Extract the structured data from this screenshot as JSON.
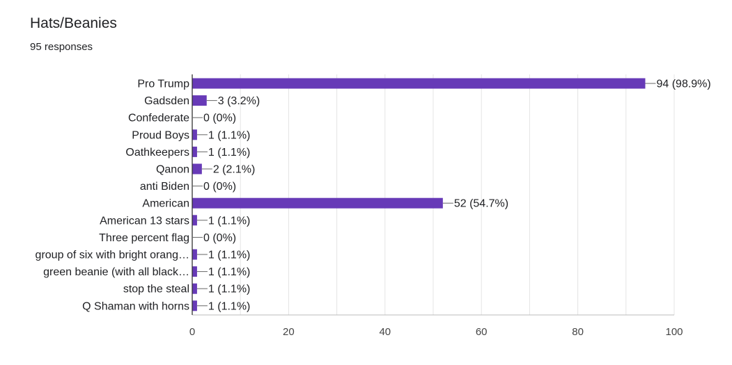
{
  "header": {
    "title": "Hats/Beanies",
    "subtitle": "95 responses"
  },
  "colors": {
    "bar": "#673ab7",
    "grid": "#e4e4e4",
    "axis": "#333333",
    "leader": "#666666"
  },
  "chart_data": {
    "type": "bar",
    "orientation": "horizontal",
    "title": "Hats/Beanies",
    "subtitle": "95 responses",
    "categories": [
      "Pro Trump",
      "Gadsden",
      "Confederate",
      "Proud Boys",
      "Oathkeepers",
      "Qanon",
      "anti Biden",
      "American",
      "American 13 stars",
      "Three percent flag",
      "group of six with bright orang…",
      "green beanie (with all black…",
      "stop the steal",
      "Q Shaman with horns"
    ],
    "values": [
      94,
      3,
      0,
      1,
      1,
      2,
      0,
      52,
      1,
      0,
      1,
      1,
      1,
      1
    ],
    "data_labels": [
      "94 (98.9%)",
      "3 (3.2%)",
      "0 (0%)",
      "1 (1.1%)",
      "1 (1.1%)",
      "2 (2.1%)",
      "0 (0%)",
      "52 (54.7%)",
      "1 (1.1%)",
      "0 (0%)",
      "1 (1.1%)",
      "1 (1.1%)",
      "1 (1.1%)",
      "1 (1.1%)"
    ],
    "xlim": [
      0,
      100
    ],
    "xticks": [
      0,
      20,
      40,
      60,
      80,
      100
    ],
    "grid": true,
    "legend": "none"
  }
}
